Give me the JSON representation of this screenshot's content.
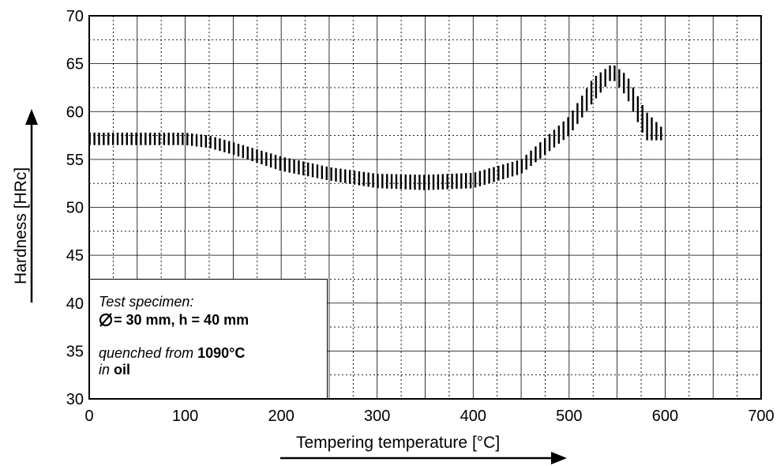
{
  "chart_data": {
    "type": "area",
    "xlabel": "Tempering temperature [°C]",
    "ylabel": "Hardness [HRc]",
    "xlim": [
      0,
      700
    ],
    "ylim": [
      30,
      70
    ],
    "x_ticks": [
      "0",
      "100",
      "200",
      "300",
      "400",
      "500",
      "600",
      "700"
    ],
    "y_ticks": [
      "30",
      "35",
      "40",
      "45",
      "50",
      "55",
      "60",
      "65",
      "70"
    ],
    "grid": true,
    "band": {
      "x": [
        0,
        50,
        100,
        125,
        150,
        200,
        250,
        300,
        350,
        400,
        450,
        500,
        525,
        545,
        560,
        580,
        600
      ],
      "lower": [
        56.5,
        56.5,
        56.5,
        56.2,
        55.5,
        53.8,
        52.8,
        52.0,
        51.8,
        52.0,
        53.5,
        57.5,
        61.0,
        63.5,
        61.5,
        57.0,
        57.0
      ],
      "upper": [
        57.8,
        57.8,
        57.8,
        57.5,
        56.8,
        55.3,
        54.2,
        53.5,
        53.4,
        53.6,
        55.0,
        59.5,
        63.5,
        65.0,
        63.8,
        60.0,
        58.0
      ]
    }
  },
  "info_box": {
    "line1": "Test specimen:",
    "line2": "= 30 mm, h = 40 mm",
    "line3_prefix": "quenched from ",
    "line3_value": "1090°C",
    "line4_prefix": "in ",
    "line4_value": "oil"
  }
}
